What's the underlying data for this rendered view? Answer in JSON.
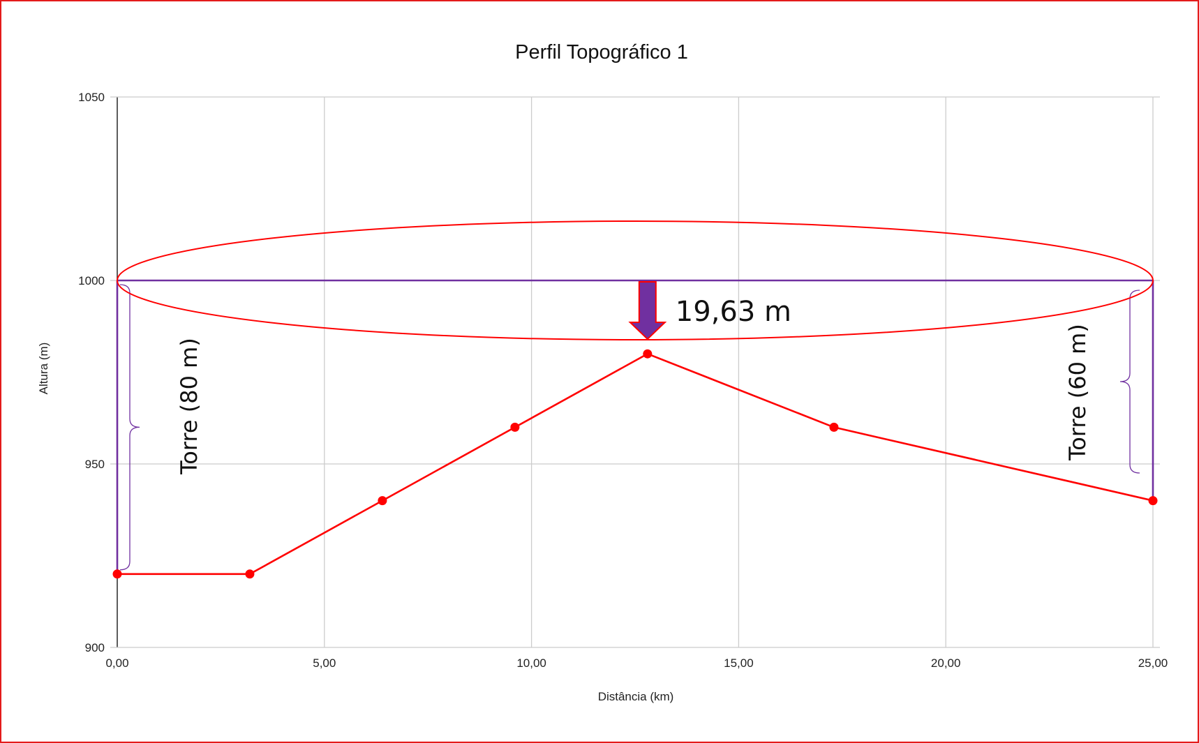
{
  "chart_data": {
    "type": "line",
    "title": "Perfil Topográfico 1",
    "xlabel": "Distância (km)",
    "ylabel": "Altura (m)",
    "xlim": [
      0,
      25
    ],
    "ylim": [
      900,
      1050
    ],
    "x_ticks": [
      0,
      5,
      10,
      15,
      20,
      25
    ],
    "x_tick_labels": [
      "0,00",
      "5,00",
      "10,00",
      "15,00",
      "20,00",
      "25,00"
    ],
    "y_ticks": [
      900,
      950,
      1000,
      1050
    ],
    "y_tick_labels": [
      "900",
      "950",
      "1000",
      "1050"
    ],
    "grid": true,
    "legend": "none",
    "series": [
      {
        "x": [
          0,
          3.2,
          6.4,
          9.6,
          12.8,
          17.3,
          25
        ],
        "y": [
          920,
          920,
          940,
          960,
          980,
          960,
          940
        ],
        "color": "#ff0000"
      }
    ],
    "annotations": {
      "line_of_sight": {
        "x": [
          0,
          25
        ],
        "y": 1000,
        "color": "#7030a0"
      },
      "left_tower": {
        "x": 0,
        "from": 920,
        "to": 1000,
        "label": "Torre (80 m)"
      },
      "right_tower": {
        "x": 25,
        "from": 940,
        "to": 1000,
        "label": "Torre (60 m)"
      },
      "clearance_arrow": {
        "x": 12.8,
        "label": "19,63 m",
        "color": "#7030a0"
      },
      "fresnel_ellipse": {
        "x_from": 0,
        "x_to": 25,
        "center": 1000,
        "color": "#ff0000"
      }
    }
  }
}
